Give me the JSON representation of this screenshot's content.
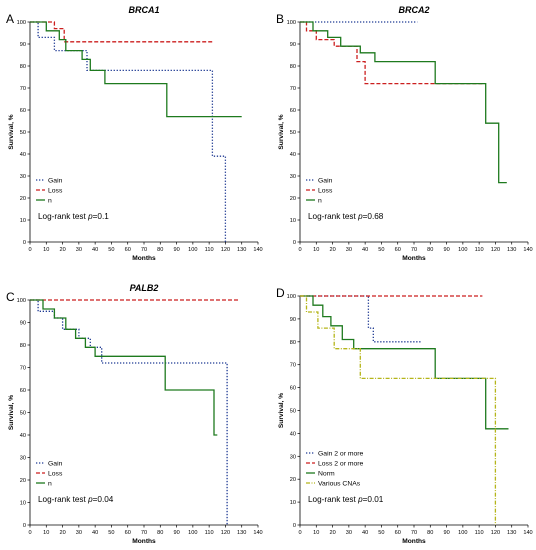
{
  "chart_data": [
    {
      "type": "line",
      "panel_letter": "A",
      "title": "BRCA1",
      "xlabel": "Months",
      "ylabel": "Survival, %",
      "xlim": [
        0,
        140
      ],
      "ylim": [
        0,
        100
      ],
      "x_ticks": [
        0,
        10,
        20,
        30,
        40,
        50,
        60,
        70,
        80,
        90,
        100,
        110,
        120,
        130,
        140
      ],
      "y_ticks": [
        0,
        10,
        20,
        30,
        40,
        50,
        60,
        70,
        80,
        90,
        100
      ],
      "legend_position": "bottom-left",
      "annotation": {
        "prefix": "Log-rank test ",
        "stat": "p",
        "value": "=0.1"
      },
      "series": [
        {
          "name": "Gain",
          "color": "#1f3a93",
          "dash": "dotted",
          "x": [
            0,
            5,
            5,
            15,
            15,
            35,
            35,
            112,
            112,
            120,
            120
          ],
          "y": [
            100,
            100,
            93,
            93,
            87,
            87,
            78,
            78,
            39,
            39,
            0
          ]
        },
        {
          "name": "Loss",
          "color": "#cc1f1f",
          "dash": "dashed",
          "x": [
            0,
            15,
            15,
            21,
            21,
            26,
            26,
            113
          ],
          "y": [
            100,
            100,
            97,
            97,
            91,
            91,
            91,
            91
          ]
        },
        {
          "name": "n",
          "color": "#1e7a1e",
          "dash": "solid",
          "x": [
            0,
            10,
            10,
            18,
            18,
            22,
            22,
            32,
            32,
            37,
            37,
            46,
            46,
            84,
            84,
            130
          ],
          "y": [
            100,
            100,
            96,
            96,
            92,
            92,
            87,
            87,
            83,
            83,
            78,
            78,
            72,
            72,
            57,
            57
          ]
        }
      ]
    },
    {
      "type": "line",
      "panel_letter": "B",
      "title": "BRCA2",
      "xlabel": "Months",
      "ylabel": "Survival, %",
      "xlim": [
        0,
        140
      ],
      "ylim": [
        0,
        100
      ],
      "x_ticks": [
        0,
        10,
        20,
        30,
        40,
        50,
        60,
        70,
        80,
        90,
        100,
        110,
        120,
        130,
        140
      ],
      "y_ticks": [
        0,
        10,
        20,
        30,
        40,
        50,
        60,
        70,
        80,
        90,
        100
      ],
      "legend_position": "bottom-left",
      "annotation": {
        "prefix": "Log-rank test ",
        "stat": "p",
        "value": "=0.68"
      },
      "series": [
        {
          "name": "Gain",
          "color": "#1f3a93",
          "dash": "dotted",
          "x": [
            0,
            72
          ],
          "y": [
            100,
            100
          ]
        },
        {
          "name": "Loss",
          "color": "#cc1f1f",
          "dash": "dashed",
          "x": [
            0,
            4,
            4,
            10,
            10,
            21,
            21,
            35,
            35,
            40,
            40,
            112
          ],
          "y": [
            100,
            100,
            96,
            96,
            92,
            92,
            89,
            89,
            82,
            82,
            72,
            72
          ]
        },
        {
          "name": "n",
          "color": "#1e7a1e",
          "dash": "solid",
          "x": [
            0,
            8,
            8,
            17,
            17,
            25,
            25,
            37,
            37,
            46,
            46,
            83,
            83,
            114,
            114,
            122,
            122,
            127
          ],
          "y": [
            100,
            100,
            96,
            96,
            93,
            93,
            89,
            89,
            86,
            86,
            82,
            82,
            72,
            72,
            54,
            54,
            27,
            27
          ]
        }
      ]
    },
    {
      "type": "line",
      "panel_letter": "C",
      "title": "PALB2",
      "xlabel": "Months",
      "ylabel": "Survival, %",
      "xlim": [
        0,
        140
      ],
      "ylim": [
        0,
        100
      ],
      "x_ticks": [
        0,
        10,
        20,
        30,
        40,
        50,
        60,
        70,
        80,
        90,
        100,
        110,
        120,
        130,
        140
      ],
      "y_ticks": [
        0,
        10,
        20,
        30,
        40,
        50,
        60,
        70,
        80,
        90,
        100
      ],
      "legend_position": "bottom-left",
      "annotation": {
        "prefix": "Log-rank test ",
        "stat": "p",
        "value": "=0.04"
      },
      "series": [
        {
          "name": "Gain",
          "color": "#1f3a93",
          "dash": "dotted",
          "x": [
            0,
            5,
            5,
            15,
            15,
            20,
            20,
            30,
            30,
            37,
            37,
            44,
            44,
            50,
            50,
            121,
            121
          ],
          "y": [
            100,
            100,
            95,
            95,
            92,
            92,
            87,
            87,
            83,
            83,
            79,
            79,
            72,
            72,
            72,
            72,
            0
          ]
        },
        {
          "name": "Loss",
          "color": "#cc1f1f",
          "dash": "dashed",
          "x": [
            0,
            128
          ],
          "y": [
            100,
            100
          ]
        },
        {
          "name": "n",
          "color": "#1e7a1e",
          "dash": "solid",
          "x": [
            0,
            8,
            8,
            15,
            15,
            22,
            22,
            28,
            28,
            34,
            34,
            40,
            40,
            46,
            46,
            83,
            83,
            113,
            113,
            115
          ],
          "y": [
            100,
            100,
            96,
            96,
            92,
            92,
            87,
            87,
            83,
            83,
            79,
            79,
            75,
            75,
            75,
            75,
            60,
            60,
            40,
            40
          ]
        }
      ]
    },
    {
      "type": "line",
      "panel_letter": "D",
      "title": "",
      "xlabel": "Months",
      "ylabel": "Survival, %",
      "xlim": [
        0,
        140
      ],
      "ylim": [
        0,
        100
      ],
      "x_ticks": [
        0,
        10,
        20,
        30,
        40,
        50,
        60,
        70,
        80,
        90,
        100,
        110,
        120,
        130,
        140
      ],
      "y_ticks": [
        0,
        10,
        20,
        30,
        40,
        50,
        60,
        70,
        80,
        90,
        100
      ],
      "legend_position": "bottom-left",
      "annotation": {
        "prefix": "Log-rank test ",
        "stat": "p",
        "value": "=0.01"
      },
      "series": [
        {
          "name": "Gain 2 or more",
          "color": "#1f3a93",
          "dash": "dotted",
          "x": [
            0,
            42,
            42,
            45,
            45,
            75
          ],
          "y": [
            100,
            100,
            86,
            86,
            80,
            80
          ]
        },
        {
          "name": "Loss 2 or more",
          "color": "#cc1f1f",
          "dash": "dashed",
          "x": [
            0,
            112
          ],
          "y": [
            100,
            100
          ]
        },
        {
          "name": "Norm",
          "color": "#1e7a1e",
          "dash": "solid",
          "x": [
            0,
            8,
            8,
            14,
            14,
            19,
            19,
            26,
            26,
            33,
            33,
            45,
            45,
            83,
            83,
            114,
            114,
            128
          ],
          "y": [
            100,
            100,
            96,
            96,
            91,
            91,
            87,
            87,
            81,
            81,
            77,
            77,
            77,
            77,
            64,
            64,
            42,
            42
          ]
        },
        {
          "name": "Various CNAs",
          "color": "#b5b51a",
          "dash": "dashdot",
          "x": [
            0,
            4,
            4,
            11,
            11,
            21,
            21,
            37,
            37,
            120,
            120
          ],
          "y": [
            100,
            100,
            93,
            93,
            86,
            86,
            77,
            77,
            64,
            64,
            0
          ]
        }
      ]
    }
  ]
}
